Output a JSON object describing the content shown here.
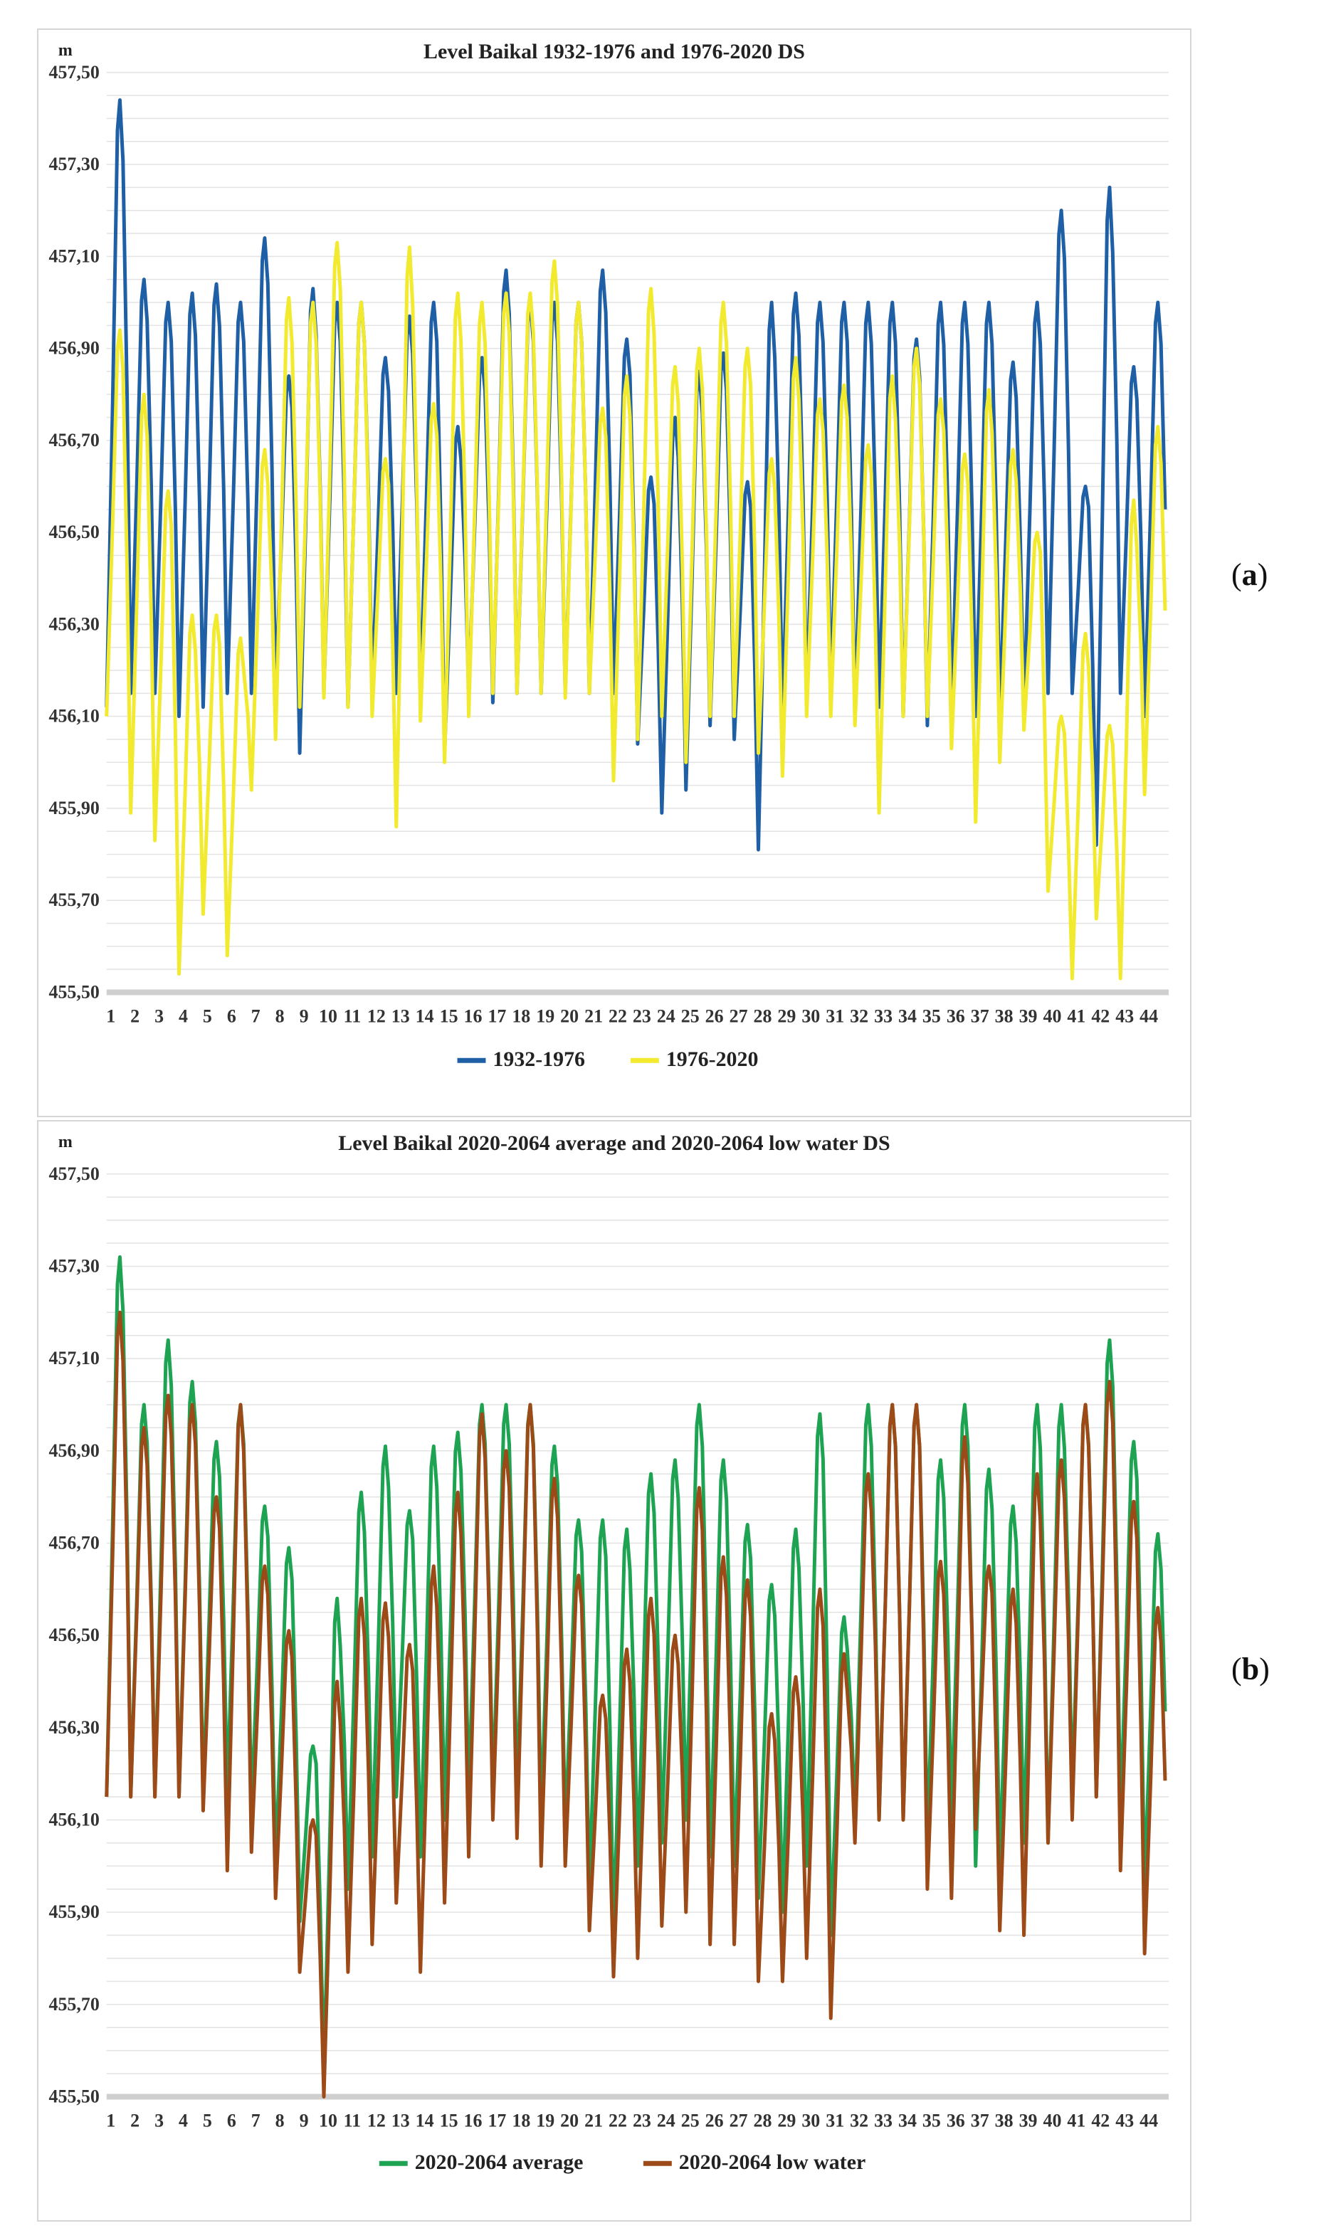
{
  "panels": [
    {
      "id": "a",
      "label_letter": "a",
      "chart_data": {
        "type": "line",
        "title": "Level Baikal 1932-1976 and 1976-2020 DS",
        "ylabel": "m",
        "xlabel": "",
        "ylim": [
          455.5,
          457.5
        ],
        "yticks": [
          "455,50",
          "455,70",
          "455,90",
          "456,10",
          "456,30",
          "456,50",
          "456,70",
          "456,90",
          "457,10",
          "457,30",
          "457,50"
        ],
        "categories": [
          "1",
          "2",
          "3",
          "4",
          "5",
          "6",
          "7",
          "8",
          "9",
          "10",
          "11",
          "12",
          "13",
          "14",
          "15",
          "16",
          "17",
          "18",
          "19",
          "20",
          "21",
          "22",
          "23",
          "24",
          "25",
          "26",
          "27",
          "28",
          "29",
          "30",
          "31",
          "32",
          "33",
          "34",
          "35",
          "36",
          "37",
          "38",
          "39",
          "40",
          "41",
          "42",
          "43",
          "44"
        ],
        "grid": true,
        "legend_position": "bottom",
        "series": [
          {
            "name": "1932-1976",
            "color": "#1f5fa6",
            "peaks": [
              457.44,
              457.05,
              457.0,
              457.02,
              457.04,
              457.0,
              457.14,
              456.84,
              457.03,
              457.0,
              457.0,
              456.88,
              456.97,
              457.0,
              456.73,
              456.88,
              457.07,
              457.0,
              457.0,
              457.0,
              457.07,
              456.92,
              456.62,
              456.75,
              456.85,
              456.89,
              456.61,
              457.0,
              457.02,
              457.0,
              457.0,
              457.0,
              457.0,
              456.92,
              457.0,
              457.0,
              457.0,
              456.87,
              457.0,
              457.2,
              456.6,
              457.25,
              456.86,
              457.0
            ],
            "troughs": [
              456.12,
              456.15,
              456.15,
              456.1,
              456.12,
              456.15,
              456.15,
              456.15,
              456.02,
              456.15,
              456.12,
              456.15,
              456.15,
              456.15,
              456.02,
              456.15,
              456.13,
              456.15,
              456.15,
              456.15,
              456.15,
              456.15,
              456.04,
              455.89,
              455.94,
              456.08,
              456.05,
              455.81,
              456.1,
              456.13,
              456.15,
              456.1,
              456.12,
              456.1,
              456.08,
              456.1,
              456.1,
              456.1,
              456.1,
              456.15,
              456.15,
              455.82,
              456.15,
              456.1
            ]
          },
          {
            "name": "1976-2020",
            "color": "#f2ea2e",
            "peaks": [
              456.94,
              456.8,
              456.59,
              456.32,
              456.32,
              456.27,
              456.68,
              457.01,
              457.0,
              457.13,
              457.0,
              456.66,
              457.12,
              456.78,
              457.02,
              457.0,
              457.02,
              457.02,
              457.09,
              457.0,
              456.77,
              456.84,
              457.03,
              456.86,
              456.9,
              457.0,
              456.9,
              456.66,
              456.88,
              456.79,
              456.82,
              456.69,
              456.84,
              456.9,
              456.79,
              456.67,
              456.81,
              456.68,
              456.5,
              456.1,
              456.28,
              456.08,
              456.57,
              456.73
            ],
            "troughs": [
              456.1,
              455.89,
              455.83,
              455.54,
              455.67,
              455.58,
              455.94,
              456.05,
              456.12,
              456.14,
              456.12,
              456.1,
              455.86,
              456.09,
              456.0,
              456.1,
              456.15,
              456.15,
              456.15,
              456.14,
              456.15,
              455.96,
              456.05,
              456.1,
              456.0,
              456.1,
              456.1,
              456.02,
              455.97,
              456.1,
              456.1,
              456.08,
              455.89,
              456.1,
              456.1,
              456.03,
              455.87,
              456.0,
              456.07,
              455.72,
              455.53,
              455.66,
              455.53,
              455.93
            ]
          }
        ]
      }
    },
    {
      "id": "b",
      "label_letter": "b",
      "chart_data": {
        "type": "line",
        "title": "Level Baikal 2020-2064 average and 2020-2064 low water DS",
        "ylabel": "m",
        "xlabel": "",
        "ylim": [
          455.5,
          457.5
        ],
        "yticks": [
          "455,50",
          "455,70",
          "455,90",
          "456,10",
          "456,30",
          "456,50",
          "456,70",
          "456,90",
          "457,10",
          "457,30",
          "457,50"
        ],
        "categories": [
          "1",
          "2",
          "3",
          "4",
          "5",
          "6",
          "7",
          "8",
          "9",
          "10",
          "11",
          "12",
          "13",
          "14",
          "15",
          "16",
          "17",
          "18",
          "19",
          "20",
          "21",
          "22",
          "23",
          "24",
          "25",
          "26",
          "27",
          "28",
          "29",
          "30",
          "31",
          "32",
          "33",
          "34",
          "35",
          "36",
          "37",
          "38",
          "39",
          "40",
          "41",
          "42",
          "43",
          "44"
        ],
        "grid": true,
        "legend_position": "bottom",
        "series": [
          {
            "name": "2020-2064 average",
            "color": "#1ea352",
            "peaks": [
              457.32,
              457.0,
              457.14,
              457.05,
              456.92,
              457.0,
              456.78,
              456.69,
              456.26,
              456.58,
              456.81,
              456.91,
              456.77,
              456.91,
              456.94,
              457.0,
              457.0,
              457.0,
              456.91,
              456.75,
              456.75,
              456.73,
              456.85,
              456.88,
              457.0,
              456.88,
              456.74,
              456.61,
              456.73,
              456.98,
              456.54,
              457.0,
              457.0,
              457.0,
              456.88,
              457.0,
              456.86,
              456.78,
              457.0,
              457.0,
              457.0,
              457.14,
              456.92,
              456.72
            ],
            "troughs": [
              456.15,
              456.15,
              456.15,
              456.15,
              456.15,
              456.15,
              456.12,
              456.0,
              455.88,
              455.55,
              455.95,
              456.02,
              456.15,
              456.02,
              456.1,
              456.15,
              456.15,
              456.15,
              456.1,
              456.07,
              455.95,
              455.85,
              456.0,
              456.05,
              456.1,
              456.02,
              456.0,
              455.93,
              455.9,
              456.0,
              455.85,
              456.1,
              456.1,
              456.1,
              456.05,
              456.1,
              456.0,
              456.0,
              456.05,
              456.05,
              456.15,
              456.15,
              456.1,
              455.95
            ]
          },
          {
            "name": "2020-2064 low water",
            "color": "#9c4a17",
            "peaks": [
              457.2,
              456.95,
              457.02,
              457.0,
              456.8,
              457.0,
              456.65,
              456.51,
              456.1,
              456.4,
              456.58,
              456.57,
              456.48,
              456.65,
              456.81,
              456.98,
              456.9,
              457.0,
              456.84,
              456.63,
              456.37,
              456.47,
              456.58,
              456.5,
              456.82,
              456.67,
              456.62,
              456.33,
              456.41,
              456.6,
              456.46,
              456.85,
              457.0,
              457.0,
              456.66,
              456.93,
              456.65,
              456.6,
              456.85,
              456.88,
              457.0,
              457.05,
              456.79,
              456.56
            ],
            "troughs": [
              456.15,
              456.15,
              456.15,
              456.15,
              456.12,
              455.99,
              456.03,
              455.93,
              455.77,
              455.5,
              455.77,
              455.83,
              455.92,
              455.77,
              455.92,
              456.02,
              456.1,
              456.06,
              456.0,
              456.0,
              455.86,
              455.76,
              455.8,
              455.87,
              455.9,
              455.83,
              455.83,
              455.75,
              455.75,
              455.8,
              455.67,
              456.05,
              456.1,
              456.1,
              455.95,
              455.93,
              456.08,
              455.86,
              455.85,
              456.05,
              456.1,
              456.15,
              455.99,
              455.81
            ]
          }
        ]
      }
    }
  ]
}
